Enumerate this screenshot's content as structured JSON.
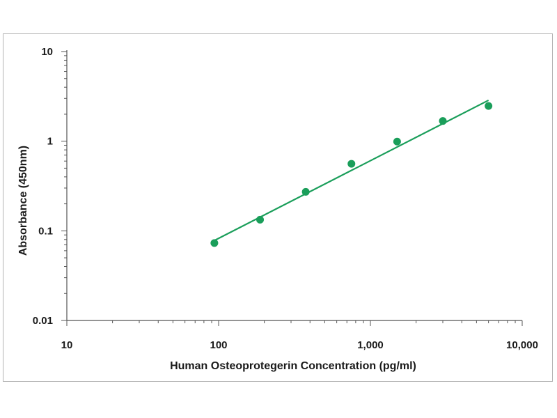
{
  "chart_data": {
    "type": "scatter",
    "xlabel": "Human Osteoprotegerin Concentration (pg/ml)",
    "ylabel": "Absorbance (450nm)",
    "x_scale": "log",
    "y_scale": "log",
    "xlim": [
      10,
      10000
    ],
    "ylim": [
      0.01,
      10
    ],
    "x_ticks": [
      10,
      100,
      1000,
      10000
    ],
    "x_tick_labels": [
      "10",
      "100",
      "1,000",
      "10,000"
    ],
    "y_ticks": [
      0.01,
      0.1,
      1,
      10
    ],
    "y_tick_labels": [
      "0.01",
      "0.1",
      "1",
      "10"
    ],
    "grid": false,
    "series": [
      {
        "x": [
          93.75,
          187.5,
          375,
          750,
          1500,
          3000,
          6000
        ],
        "y": [
          0.073,
          0.133,
          0.272,
          0.56,
          0.99,
          1.68,
          2.47
        ]
      }
    ],
    "fit_line": {
      "x": [
        93.75,
        6000
      ],
      "y": [
        0.078,
        2.86
      ]
    },
    "colors": {
      "series": "#1a9e5a",
      "axis": "#555555",
      "text": "#1a1a1a"
    }
  }
}
